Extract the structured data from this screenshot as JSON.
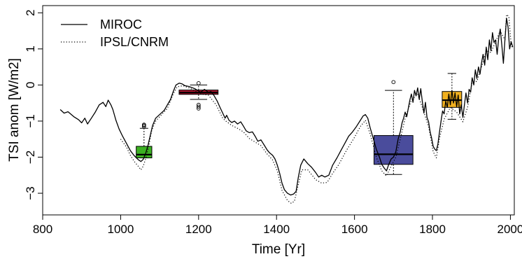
{
  "chart_data": {
    "type": "line",
    "xlabel": "Time [Yr]",
    "ylabel": "TSI anom [W/m2]",
    "xlim": [
      800,
      2010
    ],
    "ylim": [
      -3.6,
      2.2
    ],
    "x_ticks": [
      800,
      1000,
      1200,
      1400,
      1600,
      1800,
      2000
    ],
    "y_ticks": [
      -3,
      -2,
      -1,
      0,
      1,
      2
    ],
    "legend_position": "top-left",
    "grid": false,
    "series": [
      {
        "name": "MIROC",
        "style": "solid",
        "color": "#000000",
        "points": [
          [
            845,
            -0.68
          ],
          [
            855,
            -0.78
          ],
          [
            865,
            -0.74
          ],
          [
            880,
            -0.88
          ],
          [
            892,
            -0.96
          ],
          [
            900,
            -1.05
          ],
          [
            908,
            -0.92
          ],
          [
            915,
            -1.08
          ],
          [
            925,
            -0.92
          ],
          [
            935,
            -0.75
          ],
          [
            945,
            -0.55
          ],
          [
            955,
            -0.48
          ],
          [
            962,
            -0.6
          ],
          [
            968,
            -0.42
          ],
          [
            975,
            -0.55
          ],
          [
            980,
            -0.68
          ],
          [
            988,
            -0.98
          ],
          [
            996,
            -1.22
          ],
          [
            1005,
            -1.42
          ],
          [
            1015,
            -1.62
          ],
          [
            1025,
            -1.82
          ],
          [
            1035,
            -1.96
          ],
          [
            1045,
            -2.07
          ],
          [
            1052,
            -2.12
          ],
          [
            1058,
            -2.06
          ],
          [
            1064,
            -1.9
          ],
          [
            1070,
            -1.68
          ],
          [
            1076,
            -1.4
          ],
          [
            1082,
            -1.12
          ],
          [
            1090,
            -0.92
          ],
          [
            1100,
            -0.82
          ],
          [
            1112,
            -0.7
          ],
          [
            1120,
            -0.55
          ],
          [
            1128,
            -0.4
          ],
          [
            1135,
            -0.18
          ],
          [
            1142,
            0.0
          ],
          [
            1150,
            0.05
          ],
          [
            1158,
            0.03
          ],
          [
            1165,
            -0.02
          ],
          [
            1175,
            -0.04
          ],
          [
            1190,
            -0.1
          ],
          [
            1205,
            -0.2
          ],
          [
            1215,
            -0.12
          ],
          [
            1225,
            -0.2
          ],
          [
            1232,
            -0.18
          ],
          [
            1240,
            -0.3
          ],
          [
            1248,
            -0.45
          ],
          [
            1255,
            -0.62
          ],
          [
            1262,
            -0.78
          ],
          [
            1268,
            -0.92
          ],
          [
            1272,
            -0.84
          ],
          [
            1278,
            -0.98
          ],
          [
            1285,
            -1.04
          ],
          [
            1292,
            -1.0
          ],
          [
            1300,
            -1.08
          ],
          [
            1308,
            -1.02
          ],
          [
            1315,
            -1.14
          ],
          [
            1322,
            -1.27
          ],
          [
            1330,
            -1.32
          ],
          [
            1338,
            -1.3
          ],
          [
            1345,
            -1.42
          ],
          [
            1352,
            -1.56
          ],
          [
            1360,
            -1.52
          ],
          [
            1368,
            -1.66
          ],
          [
            1376,
            -1.8
          ],
          [
            1382,
            -1.88
          ],
          [
            1390,
            -1.95
          ],
          [
            1396,
            -2.05
          ],
          [
            1402,
            -2.22
          ],
          [
            1408,
            -2.45
          ],
          [
            1414,
            -2.72
          ],
          [
            1420,
            -2.9
          ],
          [
            1428,
            -3.0
          ],
          [
            1436,
            -3.05
          ],
          [
            1444,
            -3.02
          ],
          [
            1450,
            -2.95
          ],
          [
            1456,
            -2.55
          ],
          [
            1462,
            -2.22
          ],
          [
            1470,
            -2.05
          ],
          [
            1480,
            -2.18
          ],
          [
            1490,
            -2.28
          ],
          [
            1500,
            -2.42
          ],
          [
            1508,
            -2.55
          ],
          [
            1516,
            -2.5
          ],
          [
            1524,
            -2.55
          ],
          [
            1534,
            -2.5
          ],
          [
            1544,
            -2.22
          ],
          [
            1555,
            -2.02
          ],
          [
            1565,
            -1.82
          ],
          [
            1575,
            -1.62
          ],
          [
            1585,
            -1.42
          ],
          [
            1595,
            -1.3
          ],
          [
            1605,
            -1.15
          ],
          [
            1615,
            -0.98
          ],
          [
            1622,
            -0.86
          ],
          [
            1628,
            -0.82
          ],
          [
            1634,
            -0.92
          ],
          [
            1640,
            -1.18
          ],
          [
            1648,
            -1.48
          ],
          [
            1656,
            -1.78
          ],
          [
            1664,
            -2.0
          ],
          [
            1670,
            -2.2
          ],
          [
            1676,
            -2.3
          ],
          [
            1682,
            -2.38
          ],
          [
            1688,
            -2.2
          ],
          [
            1694,
            -2.05
          ],
          [
            1700,
            -2.0
          ],
          [
            1706,
            -1.85
          ],
          [
            1712,
            -1.5
          ],
          [
            1718,
            -1.28
          ],
          [
            1722,
            -1.05
          ],
          [
            1726,
            -0.92
          ],
          [
            1730,
            -0.75
          ],
          [
            1734,
            -0.88
          ],
          [
            1738,
            -0.65
          ],
          [
            1742,
            -0.42
          ],
          [
            1746,
            -0.25
          ],
          [
            1750,
            -0.48
          ],
          [
            1754,
            -0.15
          ],
          [
            1758,
            -0.3
          ],
          [
            1762,
            -0.08
          ],
          [
            1766,
            -0.4
          ],
          [
            1770,
            -0.1
          ],
          [
            1774,
            -0.45
          ],
          [
            1778,
            -0.78
          ],
          [
            1782,
            -0.48
          ],
          [
            1786,
            -0.9
          ],
          [
            1790,
            -1.02
          ],
          [
            1794,
            -1.3
          ],
          [
            1798,
            -1.48
          ],
          [
            1802,
            -1.7
          ],
          [
            1806,
            -1.78
          ],
          [
            1810,
            -1.82
          ],
          [
            1814,
            -1.64
          ],
          [
            1818,
            -1.3
          ],
          [
            1822,
            -1.0
          ],
          [
            1826,
            -0.72
          ],
          [
            1830,
            -0.8
          ],
          [
            1834,
            -0.45
          ],
          [
            1838,
            -0.62
          ],
          [
            1842,
            -0.25
          ],
          [
            1846,
            -0.55
          ],
          [
            1850,
            -0.15
          ],
          [
            1854,
            -0.5
          ],
          [
            1858,
            -0.22
          ],
          [
            1862,
            -0.6
          ],
          [
            1866,
            -0.28
          ],
          [
            1870,
            -0.8
          ],
          [
            1874,
            -0.55
          ],
          [
            1878,
            -0.9
          ],
          [
            1882,
            -0.55
          ],
          [
            1886,
            -0.22
          ],
          [
            1890,
            -0.5
          ],
          [
            1894,
            -0.12
          ],
          [
            1898,
            -0.2
          ],
          [
            1902,
            0.2
          ],
          [
            1906,
            0.0
          ],
          [
            1910,
            0.42
          ],
          [
            1914,
            0.18
          ],
          [
            1918,
            0.5
          ],
          [
            1922,
            0.3
          ],
          [
            1926,
            0.62
          ],
          [
            1930,
            0.85
          ],
          [
            1934,
            0.55
          ],
          [
            1938,
            1.05
          ],
          [
            1942,
            0.7
          ],
          [
            1946,
            1.25
          ],
          [
            1950,
            0.95
          ],
          [
            1954,
            1.45
          ],
          [
            1958,
            1.18
          ],
          [
            1962,
            1.25
          ],
          [
            1966,
            0.85
          ],
          [
            1970,
            1.3
          ],
          [
            1974,
            1.55
          ],
          [
            1978,
            1.1
          ],
          [
            1982,
            0.6
          ],
          [
            1986,
            1.25
          ],
          [
            1990,
            1.85
          ],
          [
            1994,
            1.6
          ],
          [
            1998,
            1.0
          ],
          [
            2002,
            1.2
          ],
          [
            2006,
            1.05
          ]
        ]
      },
      {
        "name": "IPSL/CNRM",
        "style": "dotted",
        "color": "#000000",
        "points": [
          [
            1000,
            -1.5
          ],
          [
            1015,
            -1.72
          ],
          [
            1025,
            -1.95
          ],
          [
            1035,
            -2.12
          ],
          [
            1045,
            -2.25
          ],
          [
            1052,
            -2.35
          ],
          [
            1058,
            -2.25
          ],
          [
            1064,
            -2.05
          ],
          [
            1072,
            -1.7
          ],
          [
            1080,
            -1.25
          ],
          [
            1090,
            -1.0
          ],
          [
            1100,
            -0.88
          ],
          [
            1120,
            -0.65
          ],
          [
            1135,
            -0.25
          ],
          [
            1145,
            -0.05
          ],
          [
            1160,
            -0.02
          ],
          [
            1180,
            -0.1
          ],
          [
            1205,
            -0.25
          ],
          [
            1225,
            -0.28
          ],
          [
            1245,
            -0.55
          ],
          [
            1262,
            -0.92
          ],
          [
            1270,
            -1.0
          ],
          [
            1285,
            -1.12
          ],
          [
            1300,
            -1.2
          ],
          [
            1315,
            -1.3
          ],
          [
            1330,
            -1.48
          ],
          [
            1345,
            -1.58
          ],
          [
            1360,
            -1.68
          ],
          [
            1375,
            -1.9
          ],
          [
            1390,
            -2.08
          ],
          [
            1402,
            -2.38
          ],
          [
            1414,
            -2.92
          ],
          [
            1428,
            -3.2
          ],
          [
            1438,
            -3.28
          ],
          [
            1446,
            -3.22
          ],
          [
            1456,
            -2.75
          ],
          [
            1465,
            -2.35
          ],
          [
            1480,
            -2.35
          ],
          [
            1500,
            -2.62
          ],
          [
            1516,
            -2.72
          ],
          [
            1530,
            -2.7
          ],
          [
            1544,
            -2.45
          ],
          [
            1560,
            -2.2
          ],
          [
            1580,
            -1.8
          ],
          [
            1600,
            -1.45
          ],
          [
            1615,
            -1.15
          ],
          [
            1628,
            -0.98
          ],
          [
            1640,
            -1.35
          ],
          [
            1656,
            -2.0
          ],
          [
            1670,
            -2.38
          ],
          [
            1682,
            -2.52
          ],
          [
            1694,
            -2.25
          ],
          [
            1706,
            -2.0
          ],
          [
            1718,
            -1.48
          ],
          [
            1730,
            -0.92
          ],
          [
            1746,
            -0.42
          ],
          [
            1762,
            -0.25
          ],
          [
            1774,
            -0.62
          ],
          [
            1790,
            -1.15
          ],
          [
            1802,
            -1.85
          ],
          [
            1810,
            -2.02
          ],
          [
            1818,
            -1.48
          ],
          [
            1830,
            -0.95
          ],
          [
            1846,
            -0.62
          ],
          [
            1862,
            -0.75
          ],
          [
            1878,
            -1.02
          ],
          [
            1890,
            -0.62
          ],
          [
            1902,
            0.08
          ],
          [
            1914,
            0.1
          ],
          [
            1926,
            0.5
          ],
          [
            1938,
            0.95
          ],
          [
            1950,
            0.9
          ],
          [
            1962,
            1.2
          ],
          [
            1974,
            1.5
          ],
          [
            1986,
            1.25
          ],
          [
            1990,
            1.95
          ],
          [
            1996,
            1.9
          ],
          [
            2002,
            1.12
          ],
          [
            2006,
            1.0
          ]
        ]
      }
    ],
    "boxplots": [
      {
        "x_range": [
          1040,
          1080
        ],
        "whisker_low": -2.02,
        "q1": -2.02,
        "median": -1.93,
        "q3": -1.7,
        "whisker_high": -1.2,
        "outliers": [
          -1.1,
          -1.12,
          -1.15
        ],
        "color": "#3cb022"
      },
      {
        "x_range": [
          1150,
          1250
        ],
        "whisker_low": -0.4,
        "q1": -0.26,
        "median": -0.21,
        "q3": -0.14,
        "whisker_high": 0.0,
        "outliers": [
          0.05,
          -0.55,
          -0.6,
          -0.65
        ],
        "color": "#b0152e"
      },
      {
        "x_range": [
          1650,
          1750
        ],
        "whisker_low": -2.48,
        "q1": -2.2,
        "median": -1.92,
        "q3": -1.4,
        "whisker_high": -0.15,
        "outliers": [
          0.08
        ],
        "color": "#4a4c9c"
      },
      {
        "x_range": [
          1825,
          1875
        ],
        "whisker_low": -0.95,
        "q1": -0.62,
        "median": -0.42,
        "q3": -0.18,
        "whisker_high": 0.32,
        "outliers": [],
        "color": "#f0b020"
      }
    ]
  }
}
